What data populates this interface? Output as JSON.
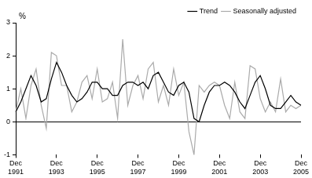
{
  "chart_data": {
    "type": "line",
    "y_label": "%",
    "categories": [
      "Dec 1991",
      null,
      null,
      null,
      null,
      null,
      null,
      null,
      "Dec 1993",
      null,
      null,
      null,
      null,
      null,
      null,
      null,
      "Dec 1995",
      null,
      null,
      null,
      null,
      null,
      null,
      null,
      "Dec 1997",
      null,
      null,
      null,
      null,
      null,
      null,
      null,
      "Dec 1999",
      null,
      null,
      null,
      null,
      null,
      null,
      null,
      "Dec 2001",
      null,
      null,
      null,
      null,
      null,
      null,
      null,
      "Dec 2003",
      null,
      null,
      null,
      null,
      null,
      null,
      null,
      "Dec 2005"
    ],
    "series": [
      {
        "name": "Trend",
        "color": "#000000",
        "values": [
          0.3,
          0.6,
          1.0,
          1.4,
          1.1,
          0.6,
          0.7,
          1.3,
          1.8,
          1.5,
          1.1,
          0.8,
          0.6,
          0.7,
          0.9,
          1.2,
          1.2,
          1.0,
          1.0,
          0.8,
          0.8,
          1.1,
          1.2,
          1.2,
          1.1,
          1.2,
          1.0,
          1.4,
          1.5,
          1.2,
          0.9,
          0.8,
          1.1,
          1.2,
          0.9,
          0.1,
          0.0,
          0.5,
          0.9,
          1.1,
          1.1,
          1.2,
          1.1,
          0.9,
          0.6,
          0.4,
          0.8,
          1.2,
          1.4,
          1.0,
          0.5,
          0.4,
          0.4,
          0.6,
          0.8,
          0.6,
          0.5
        ]
      },
      {
        "name": "Seasonally adjusted",
        "color": "#aaaaaa",
        "values": [
          0.3,
          1.0,
          0.1,
          1.1,
          1.6,
          0.5,
          -0.2,
          2.1,
          2.0,
          1.1,
          1.1,
          0.3,
          0.6,
          1.2,
          1.4,
          0.7,
          1.6,
          0.6,
          0.7,
          1.2,
          0.1,
          2.5,
          0.5,
          1.1,
          1.4,
          0.7,
          1.6,
          1.8,
          0.6,
          1.1,
          0.5,
          1.6,
          0.8,
          1.2,
          -0.3,
          -1.0,
          1.1,
          0.9,
          1.1,
          1.2,
          1.1,
          0.5,
          0.1,
          1.2,
          0.3,
          0.1,
          1.7,
          1.6,
          0.7,
          0.3,
          0.6,
          0.3,
          1.3,
          0.3,
          0.5,
          0.4,
          0.5
        ]
      }
    ],
    "ylim": [
      -1,
      3
    ],
    "yticks": [
      -1,
      0,
      1,
      2,
      3
    ],
    "grid": false,
    "legend": "top right"
  }
}
